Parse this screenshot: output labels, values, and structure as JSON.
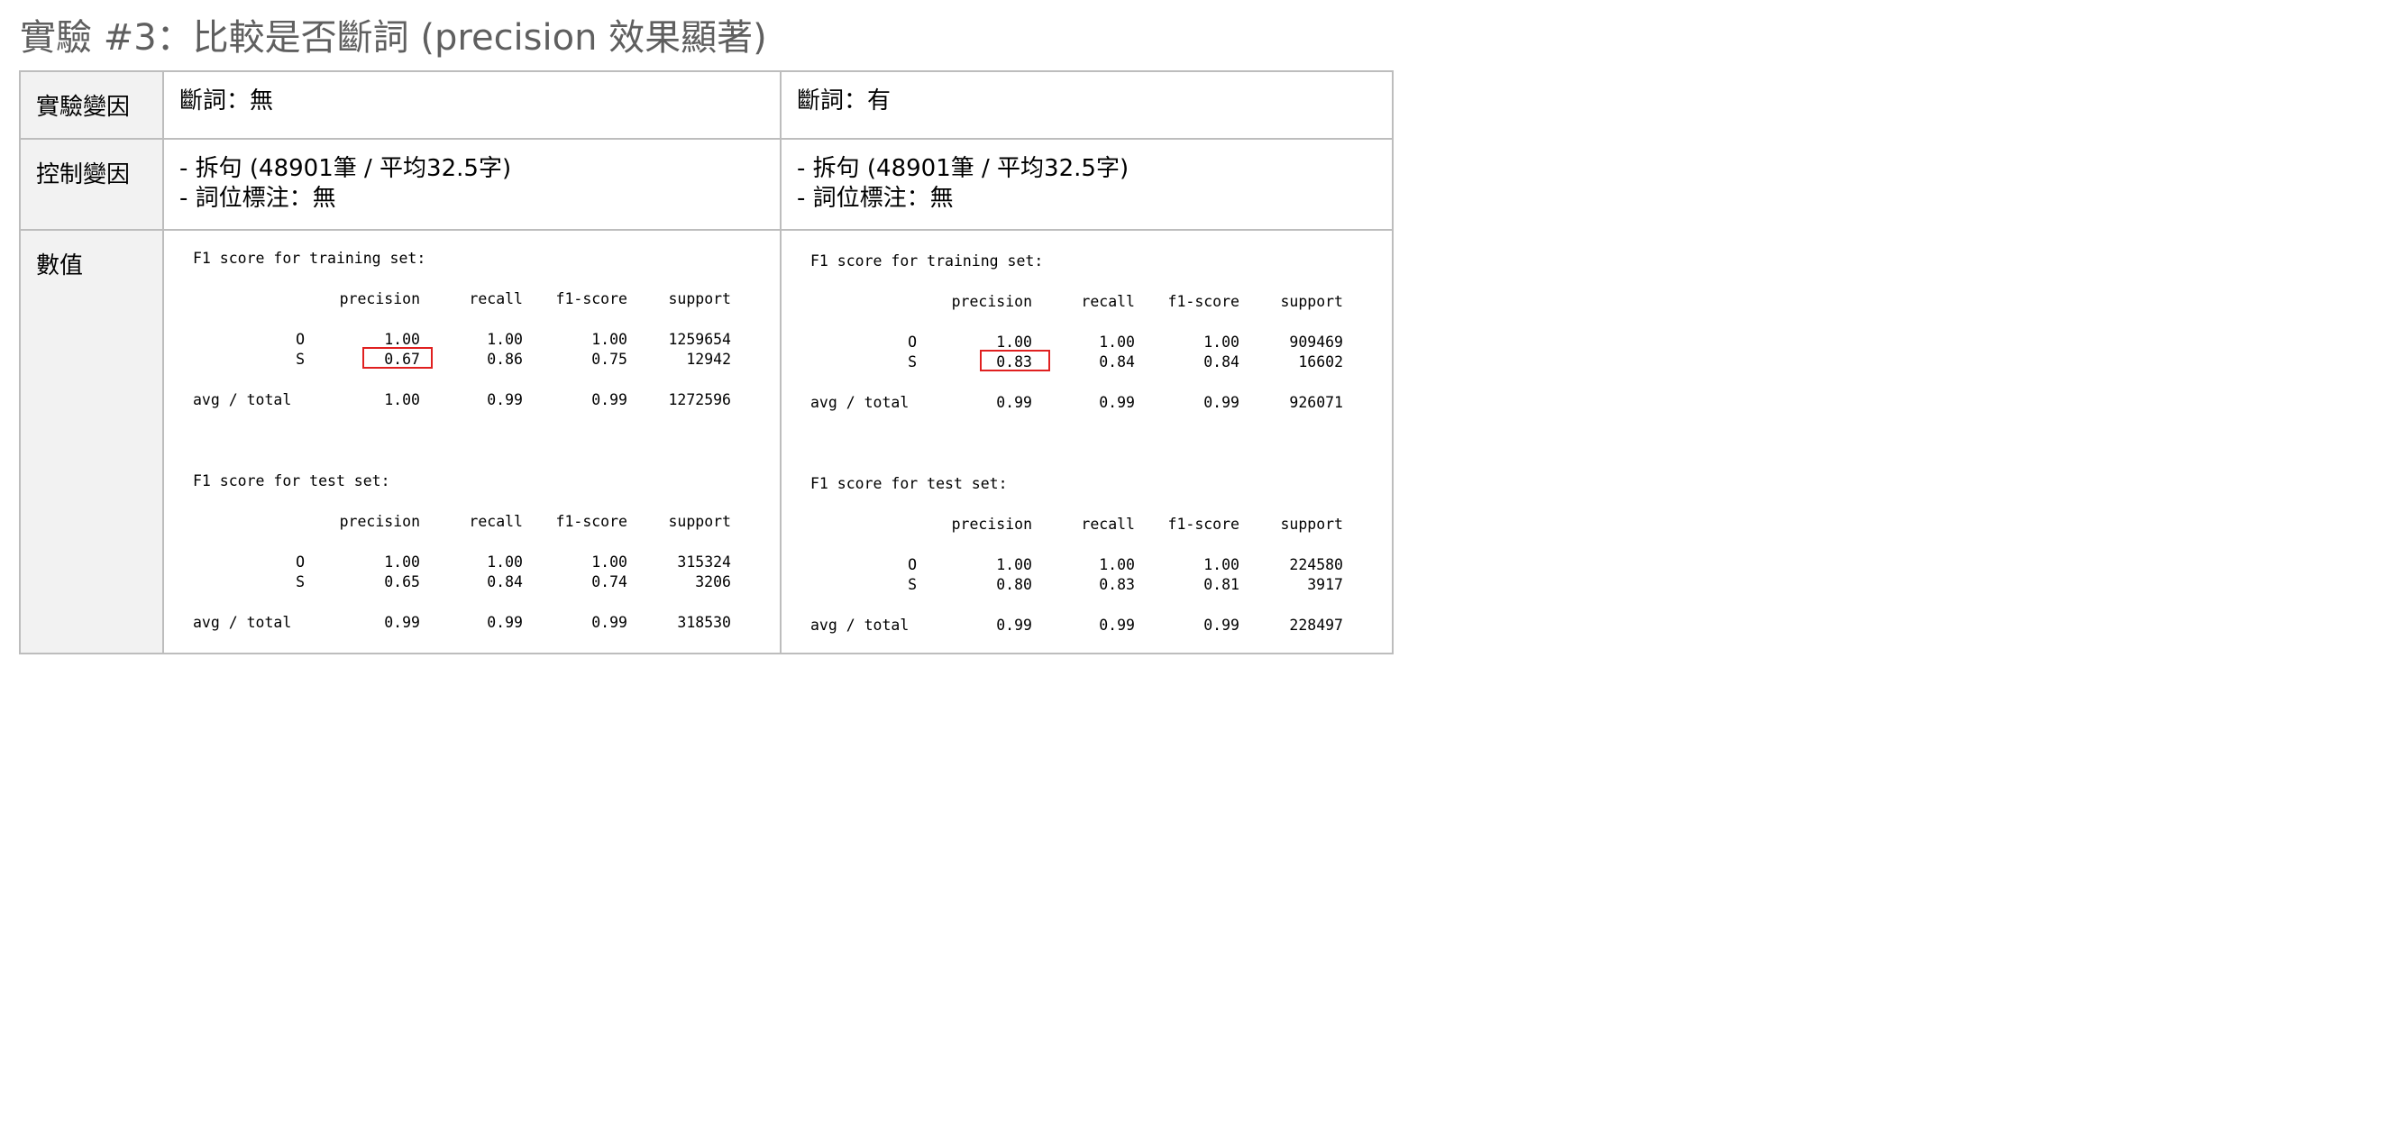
{
  "title": "實驗 #3：比較是否斷詞 (precision 效果顯著)",
  "rows": {
    "variable": {
      "label": "實驗變因",
      "left": "斷詞：無",
      "right": "斷詞：有"
    },
    "control": {
      "label": "控制變因",
      "left_line1": "- 拆句 (48901筆 / 平均32.5字)",
      "left_line2": "- 詞位標注：無",
      "right_line1": "- 拆句 (48901筆 / 平均32.5字)",
      "right_line2": "- 詞位標注：無"
    },
    "values": {
      "label": "數值"
    }
  },
  "reports": {
    "headers": {
      "precision": "precision",
      "recall": "recall",
      "f1": "f1-score",
      "support": "support"
    },
    "left": {
      "train": {
        "title": "F1 score for training set:",
        "O": {
          "label": "O",
          "precision": "1.00",
          "recall": "1.00",
          "f1": "1.00",
          "support": "1259654"
        },
        "S": {
          "label": "S",
          "precision": "0.67",
          "recall": "0.86",
          "f1": "0.75",
          "support": "12942"
        },
        "avg": {
          "label": "avg / total",
          "precision": "1.00",
          "recall": "0.99",
          "f1": "0.99",
          "support": "1272596"
        }
      },
      "test": {
        "title": "F1 score for test set:",
        "O": {
          "label": "O",
          "precision": "1.00",
          "recall": "1.00",
          "f1": "1.00",
          "support": "315324"
        },
        "S": {
          "label": "S",
          "precision": "0.65",
          "recall": "0.84",
          "f1": "0.74",
          "support": "3206"
        },
        "avg": {
          "label": "avg / total",
          "precision": "0.99",
          "recall": "0.99",
          "f1": "0.99",
          "support": "318530"
        }
      }
    },
    "right": {
      "train": {
        "title": "F1 score for training set:",
        "O": {
          "label": "O",
          "precision": "1.00",
          "recall": "1.00",
          "f1": "1.00",
          "support": "909469"
        },
        "S": {
          "label": "S",
          "precision": "0.83",
          "recall": "0.84",
          "f1": "0.84",
          "support": "16602"
        },
        "avg": {
          "label": "avg / total",
          "precision": "0.99",
          "recall": "0.99",
          "f1": "0.99",
          "support": "926071"
        }
      },
      "test": {
        "title": "F1 score for test set:",
        "O": {
          "label": "O",
          "precision": "1.00",
          "recall": "1.00",
          "f1": "1.00",
          "support": "224580"
        },
        "S": {
          "label": "S",
          "precision": "0.80",
          "recall": "0.83",
          "f1": "0.81",
          "support": "3917"
        },
        "avg": {
          "label": "avg / total",
          "precision": "0.99",
          "recall": "0.99",
          "f1": "0.99",
          "support": "228497"
        }
      }
    }
  },
  "highlight_color": "#e02020"
}
